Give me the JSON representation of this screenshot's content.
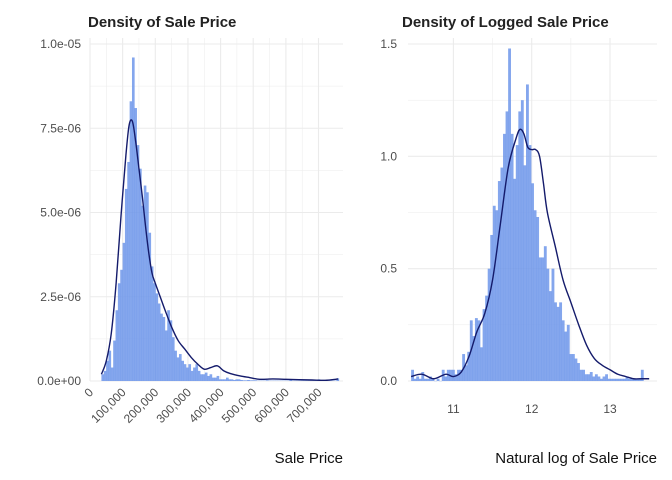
{
  "chart_data": [
    {
      "type": "histogram",
      "title": "Density of Sale Price",
      "xlabel": "Sale Price",
      "ylabel": "",
      "xlim": [
        0,
        775000
      ],
      "ylim": [
        0,
        1e-05
      ],
      "x_ticks": [
        {
          "value": 0,
          "label": "0"
        },
        {
          "value": 100000,
          "label": "100,000"
        },
        {
          "value": 200000,
          "label": "200,000"
        },
        {
          "value": 300000,
          "label": "300,000"
        },
        {
          "value": 400000,
          "label": "400,000"
        },
        {
          "value": 500000,
          "label": "500,000"
        },
        {
          "value": 600000,
          "label": "600,000"
        },
        {
          "value": 700000,
          "label": "700,000"
        }
      ],
      "x_tick_rotation": -45,
      "y_ticks": [
        {
          "value": 0,
          "label": "0.0e+00"
        },
        {
          "value": 2.5e-06,
          "label": "2.5e-06"
        },
        {
          "value": 5e-06,
          "label": "5.0e-06"
        },
        {
          "value": 7.5e-06,
          "label": "7.5e-06"
        },
        {
          "value": 1e-05,
          "label": "1.0e-05"
        }
      ],
      "bins": {
        "start": 35000,
        "width": 7200,
        "values": [
          2e-07,
          3e-07,
          6e-07,
          9e-07,
          4e-07,
          1.2e-06,
          2.1e-06,
          2.9e-06,
          3.3e-06,
          4.1e-06,
          5.7e-06,
          6.5e-06,
          8.3e-06,
          9.6e-06,
          8.1e-06,
          7e-06,
          6.3e-06,
          5.2e-06,
          5.8e-06,
          5.6e-06,
          4.4e-06,
          3.4e-06,
          2.9e-06,
          2.6e-06,
          2.3e-06,
          2e-06,
          1.9e-06,
          1.5e-06,
          2.1e-06,
          1.8e-06,
          1.3e-06,
          9e-07,
          7e-07,
          8e-07,
          6e-07,
          5e-07,
          4e-07,
          5e-07,
          3e-07,
          4e-07,
          5e-07,
          3e-07,
          2e-07,
          2e-07,
          2.5e-07,
          1.5e-07,
          2e-07,
          1e-07,
          1e-07,
          1.5e-07,
          5e-08,
          5e-08,
          5e-08,
          1e-07,
          5e-08,
          5e-08,
          3e-08,
          5e-08,
          5e-08,
          3e-08,
          2e-08,
          2e-08,
          3e-08,
          2e-08,
          2e-08,
          2e-08,
          1e-08,
          1e-08,
          1e-08,
          1e-08,
          2e-08,
          1e-08,
          1e-08,
          1e-08,
          1e-08,
          1e-08,
          1e-08,
          1e-08,
          1e-08,
          1e-08,
          5e-08,
          1e-08,
          1e-08,
          1e-08,
          1e-08,
          1e-08,
          1e-08,
          1e-08,
          1e-08,
          1e-08,
          1e-08,
          1e-08,
          5e-08,
          1e-08,
          1e-08,
          1e-08,
          1e-08,
          1e-08,
          1e-08,
          1e-08,
          8e-08
        ]
      },
      "density_curve": {
        "x": [
          35000,
          50000,
          65000,
          80000,
          95000,
          110000,
          120000,
          130000,
          140000,
          150000,
          160000,
          170000,
          180000,
          190000,
          200000,
          215000,
          230000,
          250000,
          270000,
          290000,
          310000,
          330000,
          350000,
          370000,
          390000,
          410000,
          430000,
          460000,
          490000,
          520000,
          560000,
          600000,
          640000,
          680000,
          720000,
          760000
        ],
        "y": [
          2e-07,
          6e-07,
          1.4e-06,
          2.9e-06,
          4.9e-06,
          6.7e-06,
          7.6e-06,
          7.7e-06,
          7.1e-06,
          6.3e-06,
          5.5e-06,
          4.6e-06,
          3.8e-06,
          3.2e-06,
          2.9e-06,
          2.5e-06,
          2.1e-06,
          1.6e-06,
          1.2e-06,
          9.5e-07,
          7e-07,
          5e-07,
          3.5e-07,
          4e-07,
          4.5e-07,
          3e-07,
          2.2e-07,
          1.5e-07,
          1e-07,
          5e-08,
          6e-08,
          5e-08,
          4e-08,
          3e-08,
          2e-08,
          6e-08
        ]
      },
      "grid": true,
      "colors": {
        "fill": "#6e96ea",
        "curve": "#141b6b",
        "grid": "#ebebeb"
      }
    },
    {
      "type": "histogram",
      "title": "Density of Logged Sale Price",
      "xlabel": "Natural log of Sale Price",
      "ylabel": "",
      "xlim": [
        10.42,
        13.6
      ],
      "ylim": [
        0,
        1.5
      ],
      "x_ticks": [
        {
          "value": 11,
          "label": "11"
        },
        {
          "value": 12,
          "label": "12"
        },
        {
          "value": 13,
          "label": "13"
        }
      ],
      "y_ticks": [
        {
          "value": 0,
          "label": "0.0"
        },
        {
          "value": 0.5,
          "label": "0.5"
        },
        {
          "value": 1.0,
          "label": "1.0"
        },
        {
          "value": 1.5,
          "label": "1.5"
        }
      ],
      "bins": {
        "start": 10.46,
        "width": 0.0326,
        "values": [
          0.05,
          0.01,
          0.02,
          0.01,
          0.04,
          0.01,
          0.01,
          0.02,
          0.01,
          0.0,
          0.01,
          0.0,
          0.05,
          0.02,
          0.05,
          0.05,
          0.05,
          0.03,
          0.05,
          0.05,
          0.12,
          0.07,
          0.13,
          0.27,
          0.2,
          0.28,
          0.27,
          0.15,
          0.32,
          0.38,
          0.5,
          0.65,
          0.78,
          0.76,
          0.89,
          0.95,
          1.1,
          1.2,
          1.48,
          1.1,
          0.9,
          1.05,
          1.2,
          1.25,
          0.96,
          1.32,
          1.05,
          0.88,
          0.76,
          0.73,
          0.55,
          0.55,
          0.6,
          0.5,
          0.4,
          0.5,
          0.35,
          0.33,
          0.35,
          0.27,
          0.22,
          0.25,
          0.12,
          0.12,
          0.1,
          0.08,
          0.05,
          0.05,
          0.03,
          0.03,
          0.04,
          0.02,
          0.03,
          0.02,
          0.01,
          0.02,
          0.03,
          0.01,
          0.01,
          0.01,
          0.01,
          0.01,
          0.01,
          0.01,
          0.02,
          0.01,
          0.01,
          0.01,
          0.01,
          0.01,
          0.05
        ]
      },
      "density_curve": {
        "x": [
          10.46,
          10.6,
          10.75,
          10.9,
          11.0,
          11.1,
          11.2,
          11.3,
          11.4,
          11.5,
          11.6,
          11.7,
          11.8,
          11.85,
          11.9,
          11.95,
          12.0,
          12.05,
          12.1,
          12.15,
          12.2,
          12.3,
          12.4,
          12.5,
          12.6,
          12.7,
          12.8,
          12.9,
          13.0,
          13.1,
          13.2,
          13.3,
          13.4,
          13.5
        ],
        "y": [
          0.02,
          0.03,
          0.01,
          0.03,
          0.02,
          0.04,
          0.11,
          0.22,
          0.3,
          0.45,
          0.7,
          0.95,
          1.08,
          1.12,
          1.1,
          1.04,
          1.03,
          1.03,
          1.0,
          0.88,
          0.75,
          0.6,
          0.45,
          0.35,
          0.25,
          0.16,
          0.1,
          0.07,
          0.05,
          0.03,
          0.02,
          0.01,
          0.01,
          0.01
        ]
      },
      "grid": true,
      "colors": {
        "fill": "#6e96ea",
        "curve": "#141b6b",
        "grid": "#ebebeb"
      }
    }
  ]
}
